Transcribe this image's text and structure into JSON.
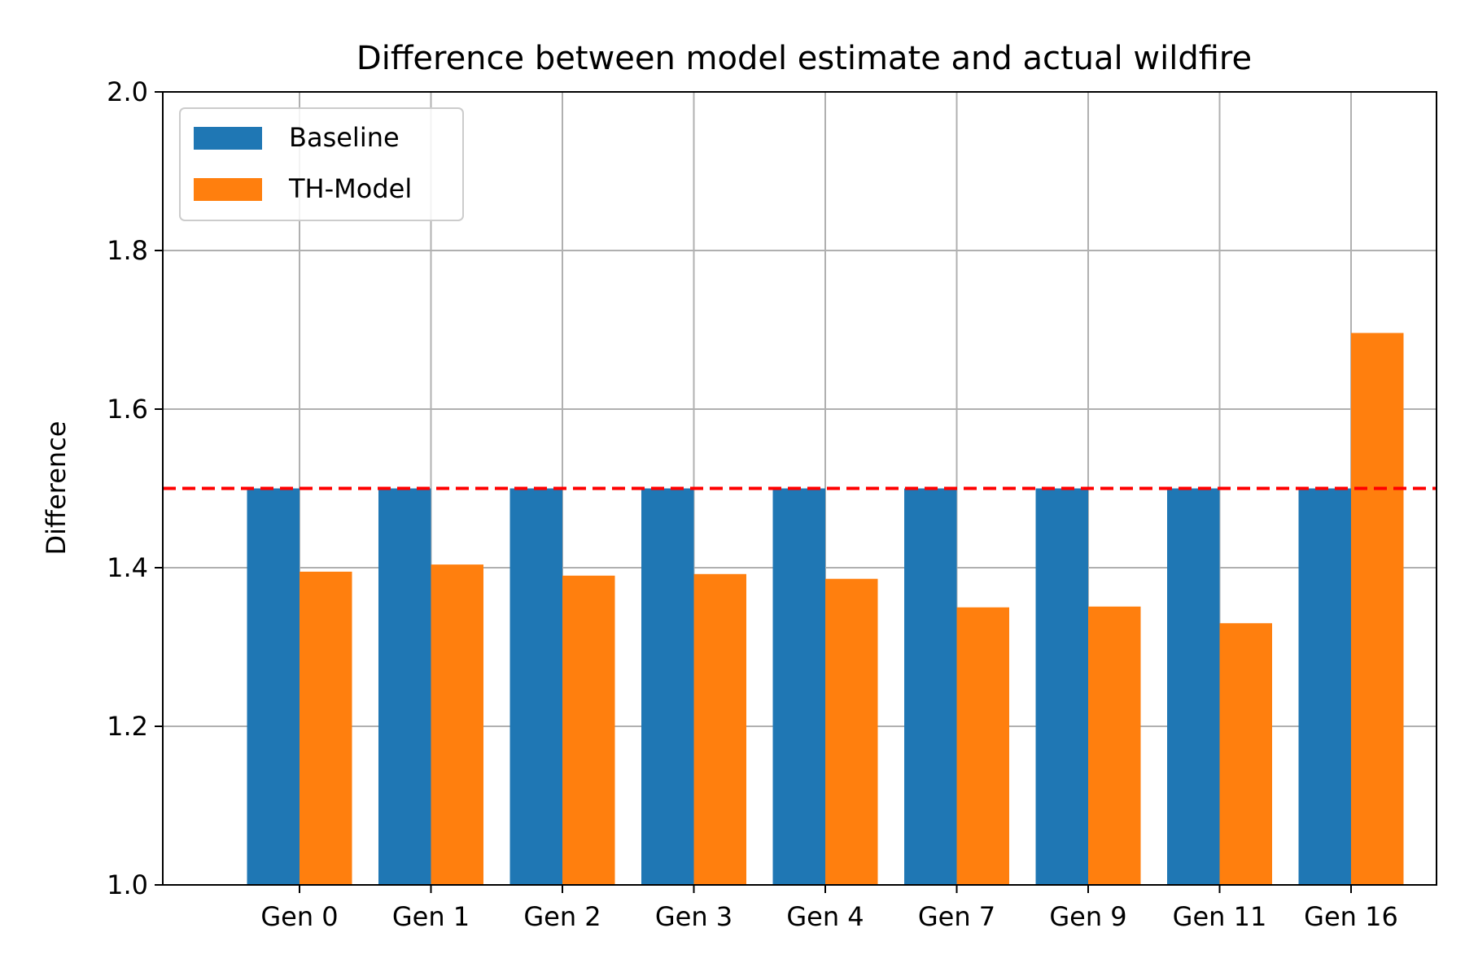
{
  "chart_data": {
    "type": "bar",
    "title": "Difference between model estimate and actual wildfire",
    "xlabel": "",
    "ylabel": "Difference",
    "ylim": [
      1.0,
      2.0
    ],
    "yticks": [
      "1.0",
      "1.2",
      "1.4",
      "1.6",
      "1.8",
      "2.0"
    ],
    "categories": [
      "Gen 0",
      "Gen 1",
      "Gen 2",
      "Gen 3",
      "Gen 4",
      "Gen 7",
      "Gen 9",
      "Gen 11",
      "Gen 16"
    ],
    "series": [
      {
        "name": "Baseline",
        "color": "#1f77b4",
        "values": [
          1.5,
          1.5,
          1.5,
          1.5,
          1.5,
          1.5,
          1.5,
          1.5,
          1.5
        ]
      },
      {
        "name": "TH-Model",
        "color": "#ff7f0e",
        "values": [
          1.395,
          1.404,
          1.39,
          1.392,
          1.386,
          1.35,
          1.351,
          1.33,
          1.696
        ]
      }
    ],
    "reference_line": {
      "y": 1.5,
      "color": "#ff0000",
      "style": "dashed"
    },
    "grid": true,
    "legend_position": "top-left"
  }
}
